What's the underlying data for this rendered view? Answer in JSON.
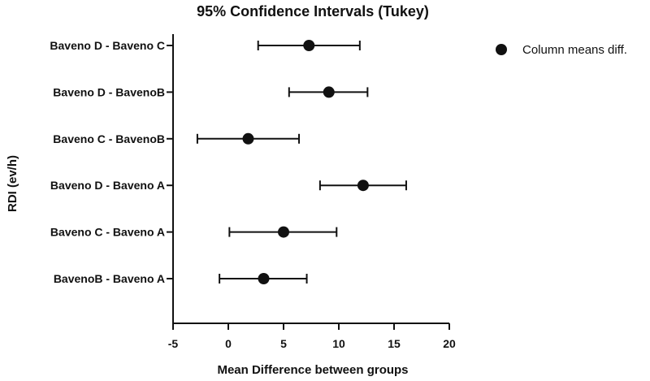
{
  "chart_data": {
    "type": "scatter",
    "title": "95% Confidence Intervals (Tukey)",
    "xlabel": "Mean Difference between groups",
    "ylabel": "RDI (ev/h)",
    "xlim": [
      -5,
      20
    ],
    "xticks": [
      -5,
      0,
      5,
      10,
      15,
      20
    ],
    "legend": {
      "label": "Column means diff.",
      "position": "top-right"
    },
    "categories": [
      "Baveno D - Baveno C",
      "Baveno D - BavenoB",
      "Baveno C - BavenoB",
      "Baveno D - Baveno A",
      "Baveno C - Baveno A",
      "BavenoB - Baveno A"
    ],
    "series": [
      {
        "name": "Column means diff.",
        "mean": [
          7.3,
          9.1,
          1.8,
          12.2,
          5.0,
          3.2
        ],
        "lower": [
          2.7,
          5.5,
          -2.8,
          8.3,
          0.1,
          -0.8
        ],
        "upper": [
          11.9,
          12.6,
          6.4,
          16.1,
          9.8,
          7.1
        ]
      }
    ]
  }
}
